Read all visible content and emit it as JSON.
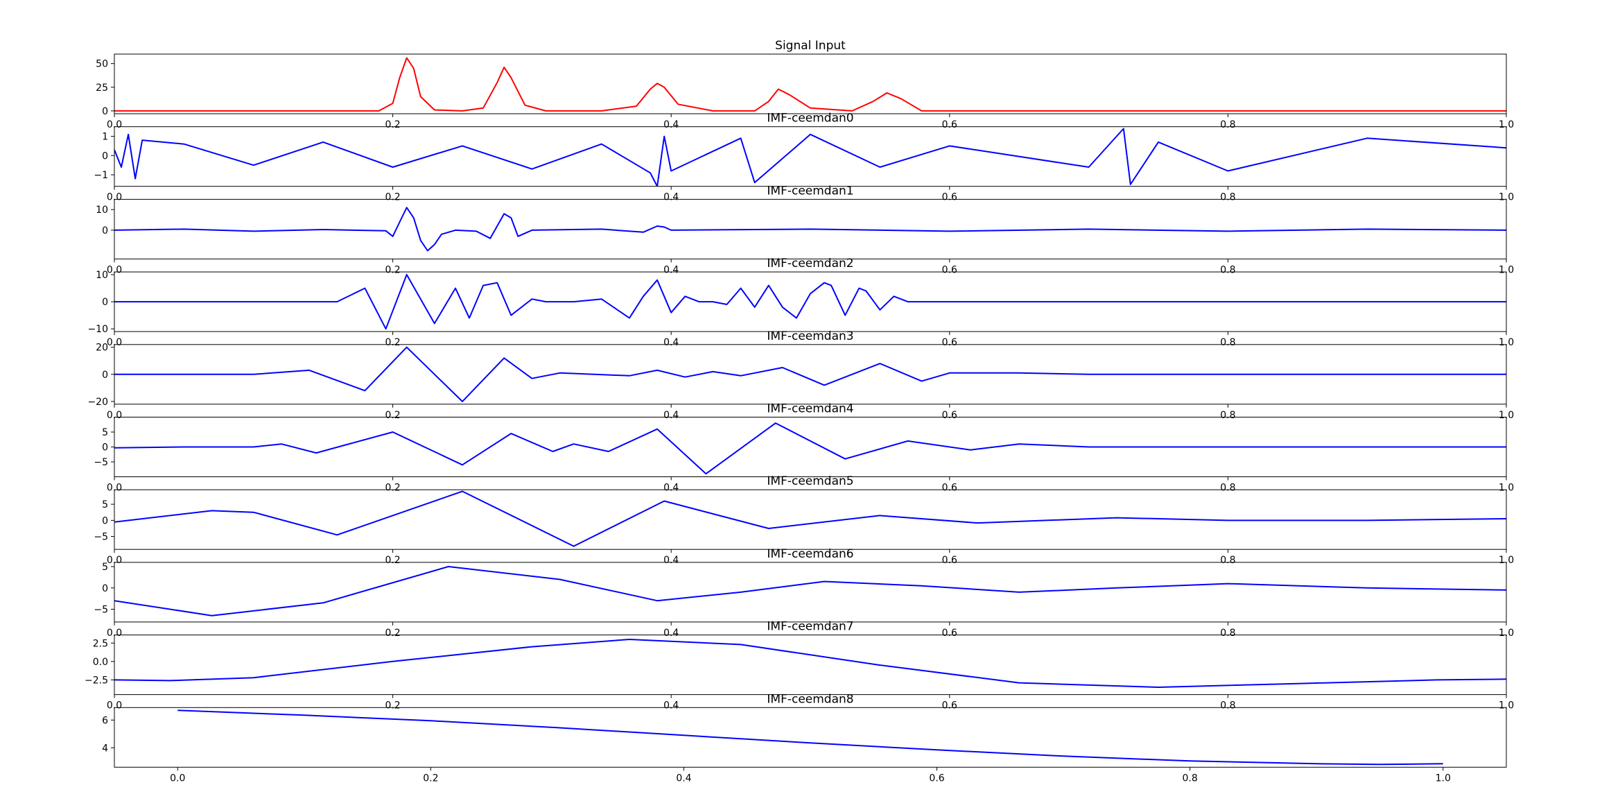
{
  "figure": {
    "suptitle": ""
  },
  "chart_data": [
    {
      "type": "line",
      "title": "Signal Input",
      "color": "#ff0000",
      "xlim": [
        0.0,
        1.0
      ],
      "ylim": [
        -3,
        60
      ],
      "xticks": [
        0.0,
        0.2,
        0.4,
        0.6,
        0.8,
        1.0
      ],
      "xtick_labels": [
        "0.0",
        "0.2",
        "0.4",
        "0.6",
        "0.8",
        "1.0"
      ],
      "yticks": [
        0,
        25,
        50
      ],
      "ytick_labels": [
        "0",
        "25",
        "50"
      ],
      "series": [
        {
          "name": "signal",
          "x": [
            0.0,
            0.05,
            0.1,
            0.15,
            0.19,
            0.2,
            0.205,
            0.21,
            0.215,
            0.22,
            0.23,
            0.25,
            0.265,
            0.275,
            0.28,
            0.285,
            0.295,
            0.31,
            0.35,
            0.375,
            0.385,
            0.39,
            0.395,
            0.405,
            0.43,
            0.46,
            0.47,
            0.477,
            0.485,
            0.5,
            0.53,
            0.545,
            0.555,
            0.565,
            0.58,
            0.65,
            0.8,
            1.0
          ],
          "values": [
            0,
            0,
            0,
            0,
            0,
            8,
            35,
            56,
            45,
            15,
            1,
            0,
            3,
            30,
            46,
            35,
            6,
            0,
            0,
            5,
            23,
            29,
            25,
            7,
            0,
            0,
            10,
            23,
            17,
            3,
            0,
            10,
            19,
            13,
            0,
            0,
            0,
            0
          ]
        }
      ]
    },
    {
      "type": "line",
      "title": "IMF-ceemdan0",
      "color": "#0000ff",
      "xlim": [
        0.0,
        1.0
      ],
      "ylim": [
        -1.6,
        1.5
      ],
      "xticks": [
        0.0,
        0.2,
        0.4,
        0.6,
        0.8,
        1.0
      ],
      "xtick_labels": [
        "0.0",
        "0.2",
        "0.4",
        "0.6",
        "0.8",
        "1.0"
      ],
      "yticks": [
        -1,
        0,
        1
      ],
      "ytick_labels": [
        "−1",
        "0",
        "1"
      ],
      "series": [
        {
          "name": "imf0",
          "x": [
            0.0,
            0.005,
            0.01,
            0.015,
            0.02,
            0.05,
            0.1,
            0.15,
            0.2,
            0.25,
            0.3,
            0.35,
            0.385,
            0.39,
            0.395,
            0.4,
            0.45,
            0.46,
            0.5,
            0.55,
            0.6,
            0.7,
            0.725,
            0.73,
            0.75,
            0.8,
            0.9,
            1.0
          ],
          "values": [
            0.3,
            -0.6,
            1.1,
            -1.2,
            0.8,
            0.6,
            -0.5,
            0.7,
            -0.6,
            0.5,
            -0.7,
            0.6,
            -0.9,
            -1.6,
            1.0,
            -0.8,
            0.9,
            -1.4,
            1.1,
            -0.6,
            0.5,
            -0.6,
            1.4,
            -1.5,
            0.7,
            -0.8,
            0.9,
            0.4
          ]
        }
      ]
    },
    {
      "type": "line",
      "title": "IMF-ceemdan1",
      "color": "#0000ff",
      "xlim": [
        0.0,
        1.0
      ],
      "ylim": [
        -14,
        15
      ],
      "xticks": [
        0.0,
        0.2,
        0.4,
        0.6,
        0.8,
        1.0
      ],
      "xtick_labels": [
        "0.0",
        "0.2",
        "0.4",
        "0.6",
        "0.8",
        "1.0"
      ],
      "yticks": [
        0,
        10
      ],
      "ytick_labels": [
        "0",
        "10"
      ],
      "series": [
        {
          "name": "imf1",
          "x": [
            0.0,
            0.05,
            0.1,
            0.15,
            0.195,
            0.2,
            0.205,
            0.21,
            0.215,
            0.22,
            0.225,
            0.23,
            0.235,
            0.245,
            0.26,
            0.27,
            0.275,
            0.28,
            0.285,
            0.29,
            0.3,
            0.35,
            0.38,
            0.39,
            0.395,
            0.4,
            0.5,
            0.6,
            0.7,
            0.8,
            0.9,
            1.0
          ],
          "values": [
            0,
            0.5,
            -0.5,
            0.3,
            -0.3,
            -3,
            4,
            11,
            6,
            -5,
            -10,
            -7,
            -2,
            0,
            -0.5,
            -4,
            2,
            8,
            6,
            -3,
            0,
            0.5,
            -1,
            2,
            1.5,
            0,
            0.5,
            -0.5,
            0.5,
            -0.5,
            0.5,
            0
          ]
        }
      ]
    },
    {
      "type": "line",
      "title": "IMF-ceemdan2",
      "color": "#0000ff",
      "xlim": [
        0.0,
        1.0
      ],
      "ylim": [
        -11,
        11
      ],
      "xticks": [
        0.0,
        0.2,
        0.4,
        0.6,
        0.8,
        1.0
      ],
      "xtick_labels": [
        "0.0",
        "0.2",
        "0.4",
        "0.6",
        "0.8",
        "1.0"
      ],
      "yticks": [
        -10,
        0,
        10
      ],
      "ytick_labels": [
        "−10",
        "0",
        "10"
      ],
      "series": [
        {
          "name": "imf2",
          "x": [
            0.0,
            0.05,
            0.1,
            0.15,
            0.16,
            0.18,
            0.195,
            0.21,
            0.23,
            0.245,
            0.255,
            0.265,
            0.275,
            0.285,
            0.3,
            0.31,
            0.33,
            0.35,
            0.37,
            0.38,
            0.39,
            0.4,
            0.41,
            0.42,
            0.43,
            0.44,
            0.45,
            0.46,
            0.47,
            0.48,
            0.49,
            0.5,
            0.51,
            0.515,
            0.525,
            0.535,
            0.54,
            0.55,
            0.56,
            0.57,
            0.59,
            0.6,
            0.7,
            0.8,
            0.9,
            1.0
          ],
          "values": [
            0,
            0,
            0,
            0,
            0,
            5,
            -10,
            10,
            -8,
            5,
            -6,
            6,
            7,
            -5,
            1,
            0,
            0,
            1,
            -6,
            2,
            8,
            -4,
            2,
            0,
            0,
            -1,
            5,
            -2,
            6,
            -2,
            -6,
            3,
            7,
            6,
            -5,
            5,
            4,
            -3,
            2,
            0,
            0,
            0,
            0,
            0,
            0,
            0
          ]
        }
      ]
    },
    {
      "type": "line",
      "title": "IMF-ceemdan3",
      "color": "#0000ff",
      "xlim": [
        0.0,
        1.0
      ],
      "ylim": [
        -22,
        22
      ],
      "xticks": [
        0.0,
        0.2,
        0.4,
        0.6,
        0.8,
        1.0
      ],
      "xtick_labels": [
        "0.0",
        "0.2",
        "0.4",
        "0.6",
        "0.8",
        "1.0"
      ],
      "yticks": [
        -20,
        0,
        20
      ],
      "ytick_labels": [
        "−20",
        "0",
        "20"
      ],
      "series": [
        {
          "name": "imf3",
          "x": [
            0.0,
            0.1,
            0.14,
            0.18,
            0.21,
            0.25,
            0.28,
            0.3,
            0.32,
            0.37,
            0.39,
            0.41,
            0.43,
            0.45,
            0.48,
            0.51,
            0.55,
            0.58,
            0.6,
            0.65,
            0.7,
            0.8,
            0.9,
            1.0
          ],
          "values": [
            0,
            0,
            3,
            -12,
            20,
            -20,
            12,
            -3,
            1,
            -1,
            3,
            -2,
            2,
            -1,
            5,
            -8,
            8,
            -5,
            1,
            1,
            0,
            0,
            0,
            0
          ]
        }
      ]
    },
    {
      "type": "line",
      "title": "IMF-ceemdan4",
      "color": "#0000ff",
      "xlim": [
        0.0,
        1.0
      ],
      "ylim": [
        -10,
        10
      ],
      "xticks": [
        0.0,
        0.2,
        0.4,
        0.6,
        0.8,
        1.0
      ],
      "xtick_labels": [
        "0.0",
        "0.2",
        "0.4",
        "0.6",
        "0.8",
        "1.0"
      ],
      "yticks": [
        -5,
        0,
        5
      ],
      "ytick_labels": [
        "−5",
        "0",
        "5"
      ],
      "series": [
        {
          "name": "imf4",
          "x": [
            0.0,
            0.05,
            0.1,
            0.12,
            0.145,
            0.2,
            0.25,
            0.285,
            0.315,
            0.33,
            0.355,
            0.39,
            0.425,
            0.475,
            0.525,
            0.57,
            0.615,
            0.65,
            0.7,
            0.8,
            0.9,
            1.0
          ],
          "values": [
            -0.3,
            0,
            0,
            1,
            -2,
            5,
            -6,
            4.5,
            -1.5,
            1,
            -1.5,
            6,
            -9,
            8,
            -4,
            2,
            -1,
            1,
            0,
            0,
            0,
            0
          ]
        }
      ]
    },
    {
      "type": "line",
      "title": "IMF-ceemdan5",
      "color": "#0000ff",
      "xlim": [
        0.0,
        1.0
      ],
      "ylim": [
        -9,
        9.5
      ],
      "xticks": [
        0.0,
        0.2,
        0.4,
        0.6,
        0.8,
        1.0
      ],
      "xtick_labels": [
        "0.0",
        "0.2",
        "0.4",
        "0.6",
        "0.8",
        "1.0"
      ],
      "yticks": [
        -5,
        0,
        5
      ],
      "ytick_labels": [
        "−5",
        "0",
        "5"
      ],
      "series": [
        {
          "name": "imf5",
          "x": [
            0.0,
            0.07,
            0.1,
            0.16,
            0.25,
            0.33,
            0.395,
            0.47,
            0.55,
            0.62,
            0.72,
            0.8,
            0.9,
            1.0
          ],
          "values": [
            -0.5,
            3,
            2.5,
            -4.5,
            9,
            -8,
            6,
            -2.5,
            1.5,
            -0.8,
            0.8,
            0,
            0,
            0.5
          ]
        }
      ]
    },
    {
      "type": "line",
      "title": "IMF-ceemdan6",
      "color": "#0000ff",
      "xlim": [
        0.0,
        1.0
      ],
      "ylim": [
        -8,
        6
      ],
      "xticks": [
        0.0,
        0.2,
        0.4,
        0.6,
        0.8,
        1.0
      ],
      "xtick_labels": [
        "0.0",
        "0.2",
        "0.4",
        "0.6",
        "0.8",
        "1.0"
      ],
      "yticks": [
        -5,
        0,
        5
      ],
      "ytick_labels": [
        "−5",
        "0",
        "5"
      ],
      "series": [
        {
          "name": "imf6",
          "x": [
            0.0,
            0.07,
            0.15,
            0.24,
            0.32,
            0.39,
            0.45,
            0.51,
            0.58,
            0.65,
            0.72,
            0.8,
            0.9,
            1.0
          ],
          "values": [
            -3,
            -6.5,
            -3.5,
            5,
            2,
            -3,
            -1,
            1.5,
            0.5,
            -1,
            0,
            1,
            0,
            -0.5
          ]
        }
      ]
    },
    {
      "type": "line",
      "title": "IMF-ceemdan7",
      "color": "#0000ff",
      "xlim": [
        0.0,
        1.0
      ],
      "ylim": [
        -4.5,
        3.6
      ],
      "xticks": [
        0.0,
        0.2,
        0.4,
        0.6,
        0.8,
        1.0
      ],
      "xtick_labels": [
        "0.0",
        "0.2",
        "0.4",
        "0.6",
        "0.8",
        "1.0"
      ],
      "yticks": [
        -2.5,
        0.0,
        2.5
      ],
      "ytick_labels": [
        "−2.5",
        "0.0",
        "2.5"
      ],
      "series": [
        {
          "name": "imf7",
          "x": [
            0.0,
            0.04,
            0.1,
            0.2,
            0.3,
            0.37,
            0.45,
            0.55,
            0.65,
            0.75,
            0.85,
            0.95,
            1.0
          ],
          "values": [
            -2.5,
            -2.6,
            -2.2,
            0,
            2,
            3,
            2.3,
            -0.5,
            -2.9,
            -3.5,
            -3,
            -2.5,
            -2.4
          ]
        }
      ]
    },
    {
      "type": "line",
      "title": "IMF-ceemdan8",
      "color": "#0000ff",
      "xlim": [
        -0.05,
        1.05
      ],
      "ylim": [
        2.6,
        6.9
      ],
      "xticks": [
        0.0,
        0.2,
        0.4,
        0.6,
        0.8,
        1.0
      ],
      "xtick_labels": [
        "0.0",
        "0.2",
        "0.4",
        "0.6",
        "0.8",
        "1.0"
      ],
      "yticks": [
        4,
        6
      ],
      "ytick_labels": [
        "4",
        "6"
      ],
      "series": [
        {
          "name": "imf8",
          "x": [
            0.0,
            0.1,
            0.2,
            0.3,
            0.4,
            0.5,
            0.6,
            0.7,
            0.8,
            0.9,
            0.95,
            1.0
          ],
          "values": [
            6.7,
            6.35,
            5.95,
            5.45,
            4.9,
            4.35,
            3.85,
            3.4,
            3.05,
            2.85,
            2.8,
            2.85
          ]
        }
      ]
    }
  ]
}
